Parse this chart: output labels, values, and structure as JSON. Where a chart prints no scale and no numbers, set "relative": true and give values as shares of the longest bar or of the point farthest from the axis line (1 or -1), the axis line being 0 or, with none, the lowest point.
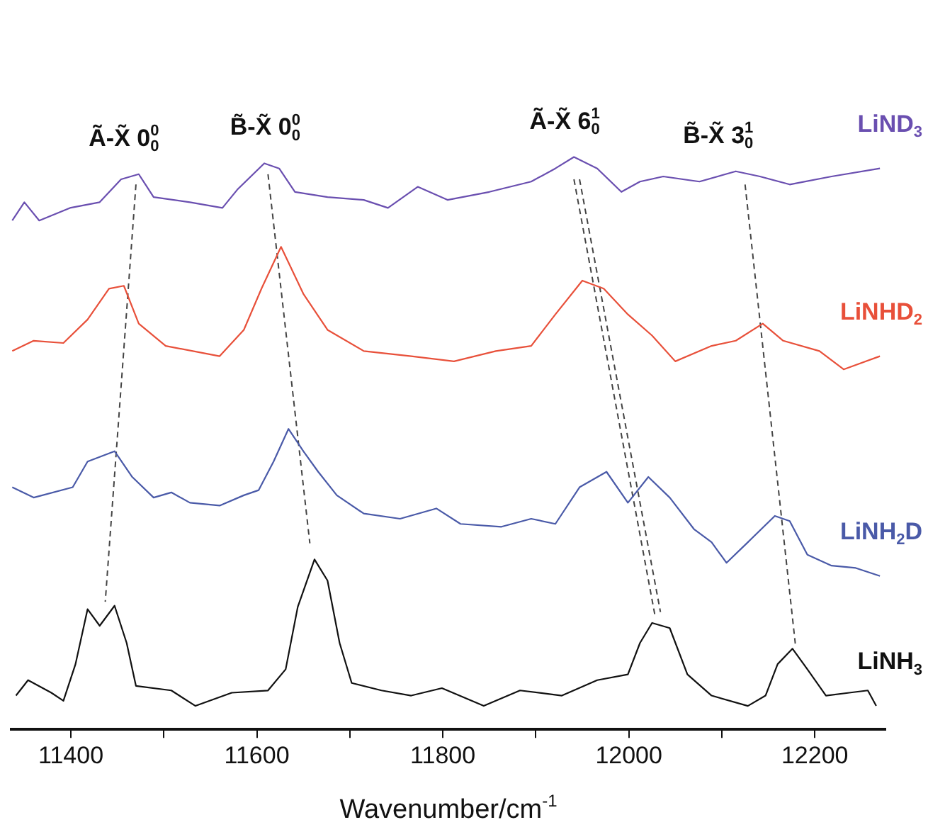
{
  "chart_data": {
    "type": "line",
    "relative": true,
    "xlabel": "Wavenumber/cm$^{-1}$",
    "xlim": [
      11336,
      12276
    ],
    "xticks": [
      11400,
      {
        "value": 11500,
        "label": null
      },
      11600,
      {
        "value": 11700,
        "label": null
      },
      11800,
      {
        "value": 11900,
        "label": null
      },
      12000,
      {
        "value": 12100,
        "label": null
      },
      12200
    ],
    "grid": false,
    "legend": false,
    "marker": "none",
    "line_style": "solid",
    "annotations": [
      {
        "text": "Ã-X̃ 0$^{0}$$_{0}$",
        "x": 11457,
        "y": 0.97
      },
      {
        "text": "B̃-X̃ 0$^{0}$$_{0}$",
        "x": 11609,
        "y": 0.989
      },
      {
        "text": "Ã-X̃ 6$^{1}$$_{0}$",
        "x": 11931,
        "y": 1.0
      },
      {
        "text": "B̃-X̃ 3$^{1}$$_{0}$",
        "x": 12096,
        "y": 0.975
      }
    ],
    "series": [
      {
        "name": "LiND$_{3}$",
        "color": "#6a4fb0",
        "x": [
          11337,
          11350,
          11366,
          11399,
          11431,
          11454,
          11473,
          11489,
          11528,
          11563,
          11579,
          11608,
          11624,
          11641,
          11676,
          11715,
          11741,
          11773,
          11805,
          11850,
          11895,
          11921,
          11941,
          11966,
          11992,
          12012,
          12037,
          12076,
          12115,
          12141,
          12173,
          12218,
          12270
        ],
        "values": [
          0.889,
          0.921,
          0.889,
          0.911,
          0.921,
          0.961,
          0.97,
          0.93,
          0.921,
          0.911,
          0.943,
          0.989,
          0.98,
          0.939,
          0.93,
          0.925,
          0.911,
          0.948,
          0.925,
          0.939,
          0.957,
          0.98,
          1.0,
          0.98,
          0.939,
          0.957,
          0.966,
          0.957,
          0.975,
          0.966,
          0.952,
          0.966,
          0.98
        ]
      },
      {
        "name": "LiNHD$_{2}$",
        "color": "#e8503a",
        "x": [
          11337,
          11360,
          11392,
          11418,
          11441,
          11457,
          11473,
          11502,
          11560,
          11586,
          11605,
          11626,
          11650,
          11676,
          11715,
          11766,
          11812,
          11857,
          11895,
          11921,
          11950,
          11973,
          11999,
          12025,
          12050,
          12089,
          12115,
          12144,
          12166,
          12205,
          12231,
          12270
        ],
        "values": [
          0.661,
          0.679,
          0.675,
          0.716,
          0.77,
          0.775,
          0.709,
          0.67,
          0.652,
          0.698,
          0.77,
          0.843,
          0.761,
          0.698,
          0.661,
          0.652,
          0.643,
          0.661,
          0.67,
          0.725,
          0.784,
          0.77,
          0.725,
          0.688,
          0.643,
          0.67,
          0.679,
          0.709,
          0.679,
          0.661,
          0.629,
          0.652
        ]
      },
      {
        "name": "LiNH$_{2}$D",
        "color": "#4a5aa8",
        "x": [
          11337,
          11360,
          11402,
          11418,
          11447,
          11466,
          11489,
          11508,
          11528,
          11560,
          11586,
          11602,
          11618,
          11634,
          11650,
          11666,
          11686,
          11715,
          11754,
          11793,
          11819,
          11863,
          11895,
          11921,
          11947,
          11976,
          11999,
          12021,
          12044,
          12070,
          12089,
          12105,
          12128,
          12157,
          12173,
          12192,
          12218,
          12244,
          12270
        ],
        "values": [
          0.423,
          0.405,
          0.423,
          0.468,
          0.486,
          0.441,
          0.405,
          0.414,
          0.396,
          0.391,
          0.409,
          0.418,
          0.468,
          0.525,
          0.486,
          0.45,
          0.409,
          0.377,
          0.368,
          0.386,
          0.359,
          0.354,
          0.368,
          0.359,
          0.423,
          0.45,
          0.396,
          0.441,
          0.405,
          0.35,
          0.327,
          0.291,
          0.327,
          0.373,
          0.364,
          0.305,
          0.286,
          0.282,
          0.268
        ]
      },
      {
        "name": "LiNH$_{3}$",
        "color": "#111111",
        "x": [
          11341,
          11354,
          11379,
          11392,
          11405,
          11418,
          11431,
          11447,
          11460,
          11470,
          11508,
          11534,
          11573,
          11612,
          11631,
          11644,
          11662,
          11676,
          11689,
          11702,
          11734,
          11766,
          11799,
          11844,
          11883,
          11928,
          11966,
          11999,
          12012,
          12025,
          12044,
          12063,
          12089,
          12128,
          12147,
          12160,
          12176,
          12192,
          12212,
          12237,
          12257,
          12266
        ],
        "values": [
          0.059,
          0.086,
          0.064,
          0.05,
          0.114,
          0.21,
          0.181,
          0.216,
          0.151,
          0.076,
          0.068,
          0.041,
          0.064,
          0.068,
          0.105,
          0.214,
          0.297,
          0.26,
          0.151,
          0.081,
          0.068,
          0.059,
          0.072,
          0.041,
          0.068,
          0.059,
          0.086,
          0.096,
          0.151,
          0.186,
          0.177,
          0.096,
          0.059,
          0.041,
          0.059,
          0.114,
          0.141,
          0.105,
          0.059,
          0.064,
          0.068,
          0.041
        ]
      },
      {
        "color": "#444444",
        "line_style": "dashed",
        "x": [
          11470,
          11437
        ],
        "values": [
          0.952,
          0.223
        ]
      },
      {
        "color": "#444444",
        "line_style": "dashed",
        "x": [
          11612,
          11657
        ],
        "values": [
          0.97,
          0.325
        ]
      },
      {
        "color": "#444444",
        "line_style": "dashed",
        "x": [
          11941,
          12028
        ],
        "values": [
          0.961,
          0.2
        ]
      },
      {
        "color": "#444444",
        "line_style": "dashed",
        "x": [
          11947,
          12034
        ],
        "values": [
          0.961,
          0.205
        ]
      },
      {
        "color": "#444444",
        "line_style": "dashed",
        "x": [
          12125,
          12179
        ],
        "values": [
          0.952,
          0.15
        ]
      }
    ]
  }
}
